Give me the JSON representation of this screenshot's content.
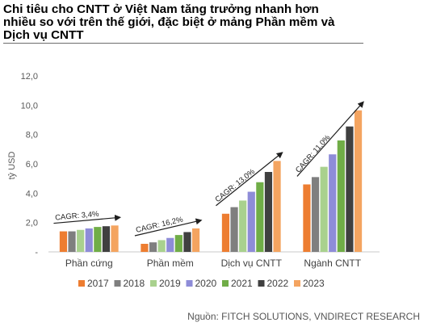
{
  "title": "Chi tiêu cho CNTT ở Việt Nam tăng trưởng nhanh hơn\nnhiều so với trên thế giới, đặc biệt ở mảng Phần mềm và\nDịch vụ CNTT",
  "source": "Nguồn: FITCH SOLUTIONS, VNDIRECT RESEARCH",
  "chart_data": {
    "type": "bar",
    "ylabel": "tỷ USD",
    "xlabel": "",
    "ylim": [
      0,
      12
    ],
    "yticks": [
      "-",
      "2,0",
      "4,0",
      "6,0",
      "8,0",
      "10,0",
      "12,0"
    ],
    "grid": false,
    "legend_position": "bottom",
    "categories": [
      "Phần cứng",
      "Phần mềm",
      "Dịch vụ CNTT",
      "Ngành CNTT"
    ],
    "series": [
      {
        "name": "2017",
        "color": "#ed7d31",
        "values": [
          1.4,
          0.55,
          2.6,
          4.6
        ]
      },
      {
        "name": "2018",
        "color": "#7f7f7f",
        "values": [
          1.4,
          0.65,
          3.05,
          5.1
        ]
      },
      {
        "name": "2019",
        "color": "#a9d18e",
        "values": [
          1.5,
          0.8,
          3.5,
          5.8
        ]
      },
      {
        "name": "2020",
        "color": "#8e8cd8",
        "values": [
          1.6,
          0.95,
          4.1,
          6.65
        ]
      },
      {
        "name": "2021",
        "color": "#70ad47",
        "values": [
          1.7,
          1.15,
          4.75,
          7.6
        ]
      },
      {
        "name": "2022",
        "color": "#404040",
        "values": [
          1.75,
          1.35,
          5.45,
          8.55
        ]
      },
      {
        "name": "2023",
        "color": "#f4a460",
        "values": [
          1.8,
          1.6,
          6.2,
          9.65
        ]
      }
    ],
    "annotations": [
      {
        "text": "CAGR: 3,4%",
        "category": "Phần cứng"
      },
      {
        "text": "CAGR: 16,2%",
        "category": "Phần mềm"
      },
      {
        "text": "CAGR: 13,0%",
        "category": "Dịch vụ CNTT"
      },
      {
        "text": "CAGR: 11,0%",
        "category": "Ngành CNTT"
      }
    ]
  }
}
